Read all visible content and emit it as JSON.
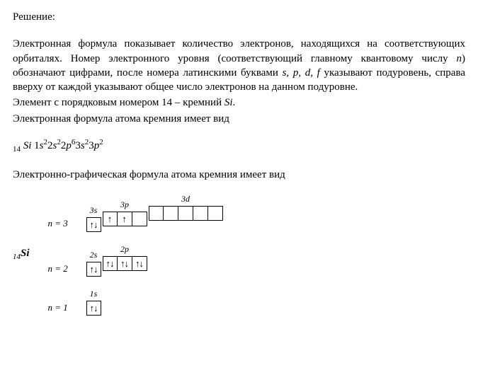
{
  "heading": "Решение:",
  "para1": "Электронная формула показывает количество электронов, находящихся на соответствующих орбиталях. Номер электронного уровня (соответствующий главному квантовому числу ",
  "para1_n": "n",
  "para1_cont": ") обозначают цифрами, после номера латинскими буквами ",
  "para1_spd": "s, p, d, f",
  "para1_end": " указывают подуровень, справа вверху от каждой указывают общее число электронов на данном подуровне.",
  "para2_a": "Элемент с порядковым номером 14 – кремний ",
  "para2_si": "Si",
  "para2_b": ".",
  "para3": "Электронная формула атома кремния имеет вид",
  "formula": {
    "pre_sub": "14",
    "el": "Si",
    "terms": [
      {
        "n": "1",
        "l": "s",
        "e": "2"
      },
      {
        "n": "2",
        "l": "s",
        "e": "2"
      },
      {
        "n": "2",
        "l": "p",
        "e": "6"
      },
      {
        "n": "3",
        "l": "s",
        "e": "2"
      },
      {
        "n": "3",
        "l": "p",
        "e": "2"
      }
    ]
  },
  "para4": "Электронно-графическая формула атома кремния имеет вид",
  "element_sub": "14",
  "element_sym": "Si",
  "levels": {
    "n3": {
      "n_label": "n = 3",
      "sublevels": [
        {
          "label": "3s",
          "boxes": [
            "pair"
          ]
        },
        {
          "label": "3p",
          "boxes": [
            "up",
            "up",
            "empty"
          ]
        },
        {
          "label": "3d",
          "boxes": [
            "empty",
            "empty",
            "empty",
            "empty",
            "empty"
          ]
        }
      ]
    },
    "n2": {
      "n_label": "n = 2",
      "sublevels": [
        {
          "label": "2s",
          "boxes": [
            "pair"
          ]
        },
        {
          "label": "2p",
          "boxes": [
            "pair",
            "pair",
            "pair"
          ]
        }
      ]
    },
    "n1": {
      "n_label": "n = 1",
      "sublevels": [
        {
          "label": "1s",
          "boxes": [
            "pair"
          ]
        }
      ]
    }
  }
}
